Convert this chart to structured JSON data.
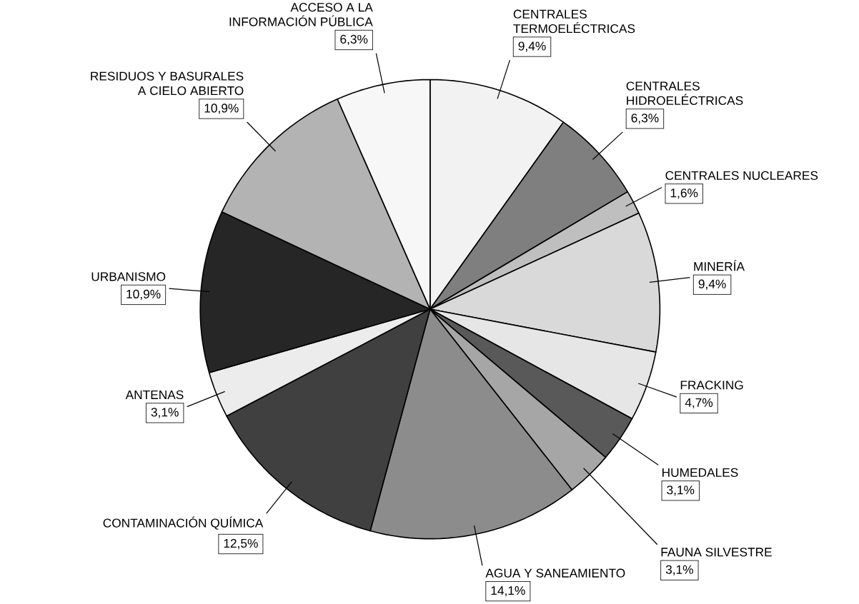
{
  "chart_data": {
    "type": "pie",
    "categories": [
      "CENTRALES TERMOELÉCTRICAS",
      "CENTRALES HIDROELÉCTRICAS",
      "CENTRALES NUCLEARES",
      "MINERÍA",
      "FRACKING",
      "HUMEDALES",
      "FAUNA SILVESTRE",
      "AGUA Y SANEAMIENTO",
      "CONTAMINACIÓN QUÍMICA",
      "ANTENAS",
      "URBANISMO",
      "RESIDUOS Y BASURALES A CIELO ABIERTO",
      "ACCESO A LA INFORMACIÓN PÚBLICA"
    ],
    "values": [
      9.4,
      6.3,
      1.6,
      9.4,
      4.7,
      3.1,
      3.1,
      14.1,
      12.5,
      3.1,
      10.9,
      10.9,
      6.3
    ],
    "colors": [
      "#f2f2f2",
      "#7f7f7f",
      "#bfbfbf",
      "#d9d9d9",
      "#e6e6e6",
      "#595959",
      "#a6a6a6",
      "#8c8c8c",
      "#404040",
      "#ececec",
      "#262626",
      "#b3b3b3",
      "#f7f7f7"
    ],
    "value_labels": [
      "9,4%",
      "6,3%",
      "1,6%",
      "9,4%",
      "4,7%",
      "3,1%",
      "3,1%",
      "14,1%",
      "12,5%",
      "3,1%",
      "10,9%",
      "10,9%",
      "6,3%"
    ]
  }
}
